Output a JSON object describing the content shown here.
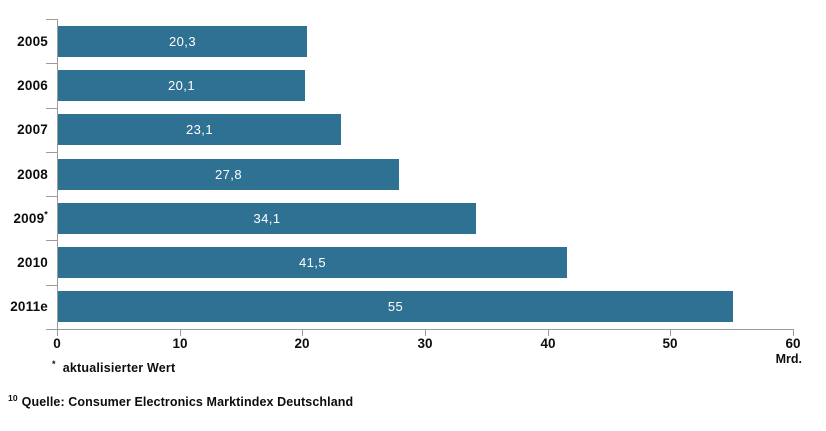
{
  "chart_data": {
    "type": "bar",
    "orientation": "horizontal",
    "title": "",
    "categories": [
      "2005",
      "2006",
      "2007",
      "2008",
      "2009",
      "2010",
      "2011e"
    ],
    "category_sups": [
      "",
      "",
      "",
      "",
      "*",
      "",
      ""
    ],
    "values": [
      20.3,
      20.1,
      23.1,
      27.8,
      34.1,
      41.5,
      55
    ],
    "value_labels": [
      "20,3",
      "20,1",
      "23,1",
      "27,8",
      "34,1",
      "41,5",
      "55"
    ],
    "xlim": [
      0,
      60
    ],
    "x_tick_values": [
      0,
      10,
      20,
      30,
      40,
      50,
      60
    ],
    "x_tick_labels": [
      "0",
      "10",
      "20",
      "30",
      "40",
      "50",
      "60"
    ],
    "x_unit_label": "Mrd.",
    "bar_color": "#2f7192",
    "value_text_color": "#ffffff",
    "axis_color": "#9b9b9b",
    "grid": false,
    "legend": false
  },
  "footnotes": {
    "asterisk_sup": "*",
    "asterisk_text": "aktualisierter Wert",
    "source_sup": "10",
    "source_text": "Quelle: Consumer Electronics Marktindex Deutschland"
  }
}
